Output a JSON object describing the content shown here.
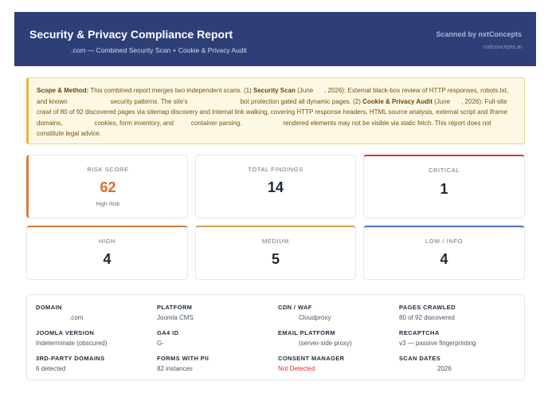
{
  "header": {
    "title": "Security & Privacy Compliance Report",
    "subtitle": ".com — Combined Security Scan + Cookie & Privacy Audit",
    "scanned_by": "Scanned by nxtConcepts",
    "site": "nxtconcepts.ai"
  },
  "scope": {
    "lead": "Scope & Method:",
    "t1": "This combined report merges two independent scans. (1)",
    "s1": "Security Scan",
    "t2": "(June",
    "t3": ", 2026): External black-box review of HTTP responses, robots.txt, and known",
    "t4": "security patterns. The site's",
    "t5": "bot protection gated all dynamic pages. (2)",
    "s2": "Cookie & Privacy Audit",
    "t6": "(June",
    "t7": ", 2026): Full-site crawl of 80 of 92 discovered pages via sitemap discovery and internal link walking, covering HTTP response headers, HTML source analysis, external script and iframe domains,",
    "t8": "cookies, form inventory, and",
    "t9": "container parsing.",
    "t10": "rendered elements may not be visible via static fetch. This report does not constitute legal advice."
  },
  "stats": {
    "risk_label": "Risk Score",
    "risk_value": "62",
    "risk_note": "High Risk",
    "total_label": "Total Findings",
    "total_value": "14",
    "critical_label": "Critical",
    "critical_value": "1",
    "high_label": "High",
    "high_value": "4",
    "medium_label": "Medium",
    "medium_value": "5",
    "low_label": "Low / Info",
    "low_value": "4"
  },
  "details": {
    "domain_k": "Domain",
    "domain_v": ".com",
    "platform_k": "Platform",
    "platform_v": "Joomla CMS",
    "cdn_k": "CDN / WAF",
    "cdn_v": "Cloudproxy",
    "pages_k": "Pages Crawled",
    "pages_v": "80 of 92 discovered",
    "joomla_k": "Joomla Version",
    "joomla_v": "Indeterminate (obscured)",
    "ga4_k": "GA4 ID",
    "ga4_v": "G-",
    "email_k": "Email Platform",
    "email_v": "(server-side proxy)",
    "recaptcha_k": "reCAPTCHA",
    "recaptcha_v": "v3 — passive fingerprinting",
    "third_k": "3rd-Party Domains",
    "third_v": "6 detected",
    "forms_k": "Forms with PII",
    "forms_v": "82 instances",
    "consent_k": "Consent Manager",
    "consent_v": "Not Detected",
    "dates_k": "Scan Dates",
    "dates_v": "2026"
  }
}
